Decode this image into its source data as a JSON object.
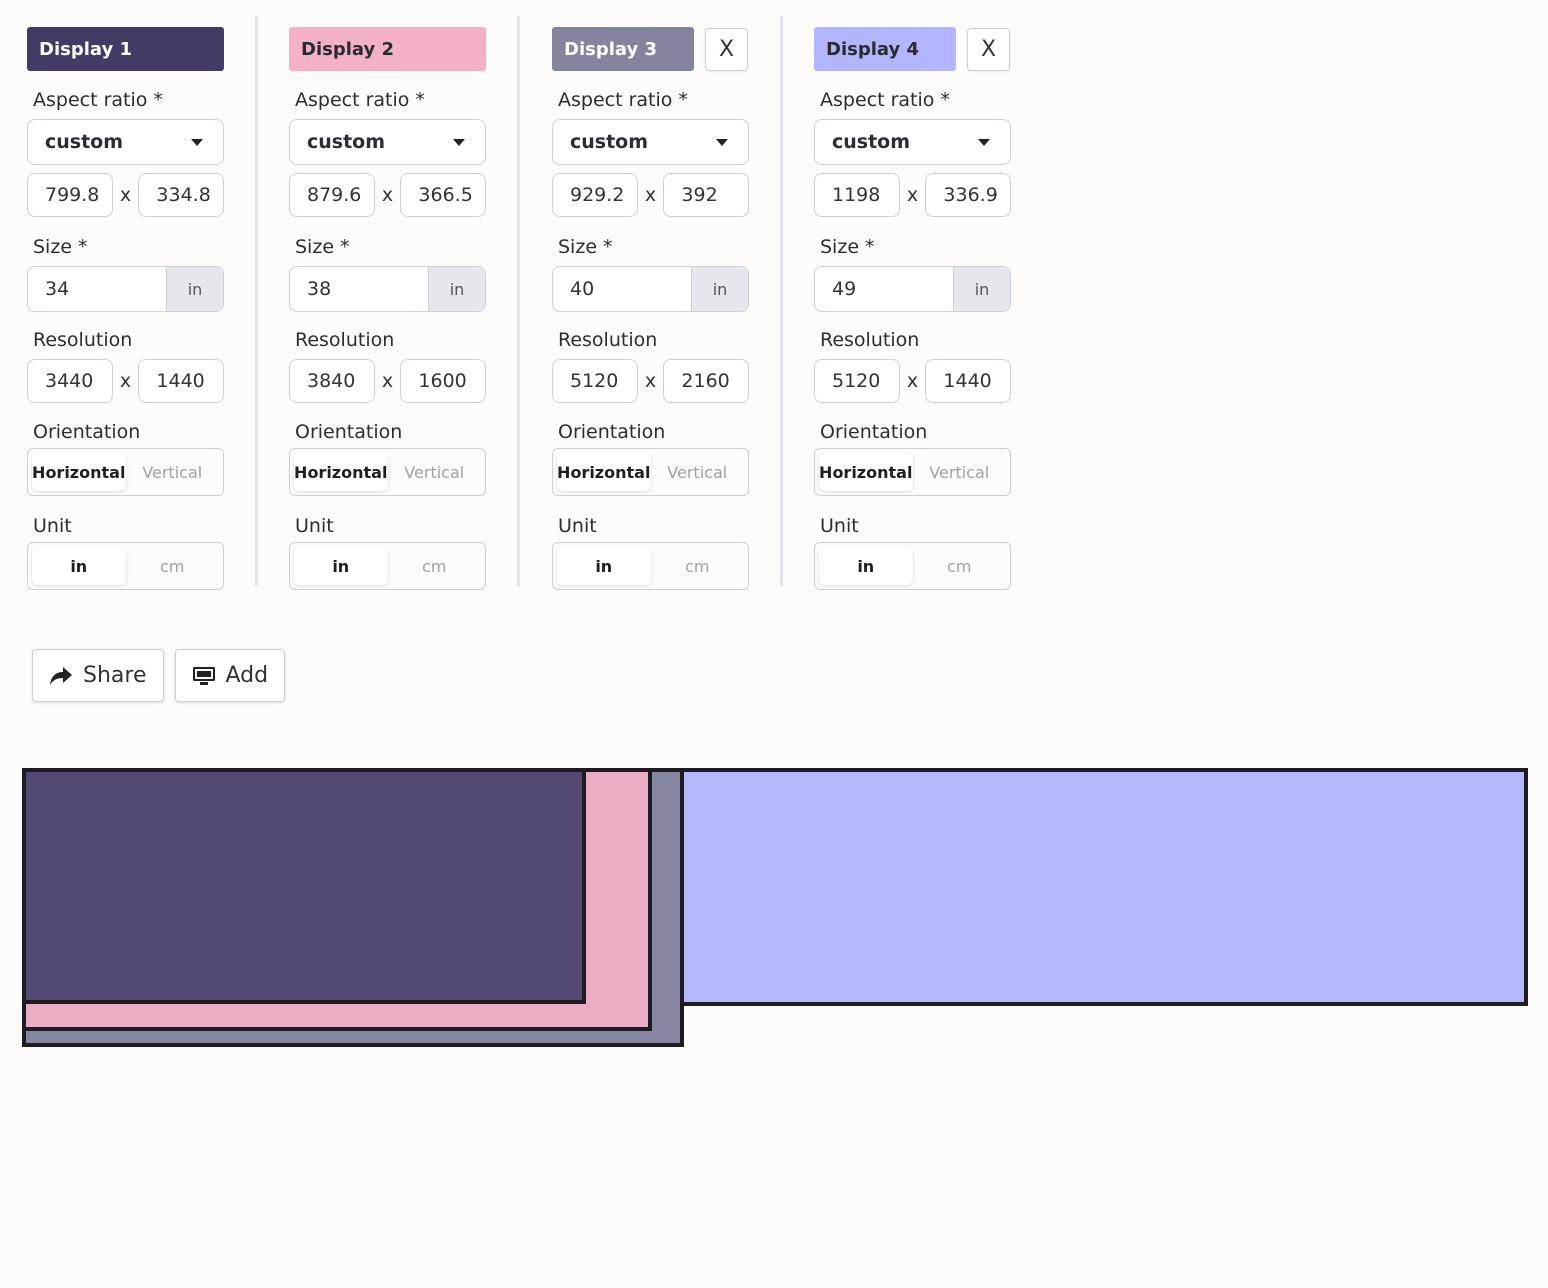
{
  "labels": {
    "aspect_ratio": "Aspect ratio *",
    "size": "Size *",
    "resolution": "Resolution",
    "orientation": "Orientation",
    "unit": "Unit",
    "x_sep": "x"
  },
  "displays": [
    {
      "title": "Display 1",
      "color": "#433b63",
      "title_text_color": "#ffffff",
      "screen_color": "#524872",
      "aspect_ratio": "custom",
      "aspect_w": "799.8",
      "aspect_h": "334.8",
      "size": "34",
      "size_unit": "in",
      "res_w": "3440",
      "res_h": "1440",
      "orientation_options": [
        "Horizontal",
        "Vertical"
      ],
      "orientation_selected": "Horizontal",
      "unit_options": [
        "in",
        "cm"
      ],
      "unit_selected": "in",
      "closable": false
    },
    {
      "title": "Display 2",
      "color": "#f3b1c8",
      "title_text_color": "#2a2a30",
      "screen_color": "#ebadc3",
      "aspect_ratio": "custom",
      "aspect_w": "879.6",
      "aspect_h": "366.5",
      "size": "38",
      "size_unit": "in",
      "res_w": "3840",
      "res_h": "1600",
      "orientation_options": [
        "Horizontal",
        "Vertical"
      ],
      "orientation_selected": "Horizontal",
      "unit_options": [
        "in",
        "cm"
      ],
      "unit_selected": "in",
      "closable": false
    },
    {
      "title": "Display 3",
      "color": "#84849e",
      "title_text_color": "#ffffff",
      "screen_color": "#8787a2",
      "aspect_ratio": "custom",
      "aspect_w": "929.2",
      "aspect_h": "392",
      "size": "40",
      "size_unit": "in",
      "res_w": "5120",
      "res_h": "2160",
      "orientation_options": [
        "Horizontal",
        "Vertical"
      ],
      "orientation_selected": "Horizontal",
      "unit_options": [
        "in",
        "cm"
      ],
      "unit_selected": "in",
      "closable": true,
      "close_label": "X"
    },
    {
      "title": "Display 4",
      "color": "#b3b5ff",
      "title_text_color": "#2a2a30",
      "screen_color": "#b5b7fd",
      "aspect_ratio": "custom",
      "aspect_w": "1198",
      "aspect_h": "336.9",
      "size": "49",
      "size_unit": "in",
      "res_w": "5120",
      "res_h": "1440",
      "orientation_options": [
        "Horizontal",
        "Vertical"
      ],
      "orientation_selected": "Horizontal",
      "unit_options": [
        "in",
        "cm"
      ],
      "unit_selected": "in",
      "closable": true,
      "close_label": "X"
    }
  ],
  "actions": {
    "share_label": "Share",
    "share_icon": "share-arrow-icon",
    "add_label": "Add",
    "add_icon": "monitor-icon"
  }
}
